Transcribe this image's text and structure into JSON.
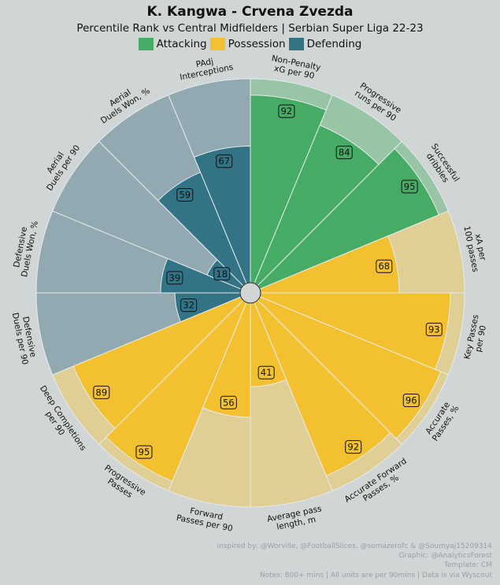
{
  "chart_data": {
    "type": "pizza",
    "title": "K. Kangwa - Crvena Zvezda",
    "subtitle": "Percentile Rank vs Central Midfielders | Serbian Super Liga 22-23",
    "legend": [
      {
        "name": "Attacking",
        "color": "#46ab64",
        "bg_color": "#98c5a6"
      },
      {
        "name": "Possession",
        "color": "#f3c12f",
        "bg_color": "#e0cf95"
      },
      {
        "name": "Defending",
        "color": "#337386",
        "bg_color": "#92a9b2"
      }
    ],
    "range": [
      0,
      100
    ],
    "params": [
      {
        "label": "Non-Penalty xG per 90",
        "value": 92,
        "group": "Attacking"
      },
      {
        "label": "Progressive runs per 90",
        "value": 84,
        "group": "Attacking"
      },
      {
        "label": "Successful dribbles",
        "value": 95,
        "group": "Attacking"
      },
      {
        "label": "xA per 100 passes",
        "value": 68,
        "group": "Possession"
      },
      {
        "label": "Key Passes per 90",
        "value": 93,
        "group": "Possession"
      },
      {
        "label": "Accurate Passes, %",
        "value": 96,
        "group": "Possession"
      },
      {
        "label": "Accurate Forward Passes, %",
        "value": 92,
        "group": "Possession"
      },
      {
        "label": "Average pass length, m",
        "value": 41,
        "group": "Possession"
      },
      {
        "label": "Forward Passes per 90",
        "value": 56,
        "group": "Possession"
      },
      {
        "label": "Progressive Passes",
        "value": 95,
        "group": "Possession"
      },
      {
        "label": "Deep Completions per 90",
        "value": 89,
        "group": "Possession"
      },
      {
        "label": "Defensive Duels per 90",
        "value": 32,
        "group": "Defending"
      },
      {
        "label": "Defensive Duels Won, %",
        "value": 39,
        "group": "Defending"
      },
      {
        "label": "Aerial Duels per 90",
        "value": 18,
        "group": "Defending"
      },
      {
        "label": "Aerial Duels Won, %",
        "value": 59,
        "group": "Defending"
      },
      {
        "label": "PAdj Interceptions",
        "value": 67,
        "group": "Defending"
      }
    ]
  },
  "notes": [
    "Inspired by: @Worville, @FootballSlices, @somazerofc & @Soumyaj15209314",
    "Graphic: @AnalyticsForest",
    "Template: CM",
    "Notes: 800+ mins | All units are per 90mins | Data is via Wyscout"
  ]
}
